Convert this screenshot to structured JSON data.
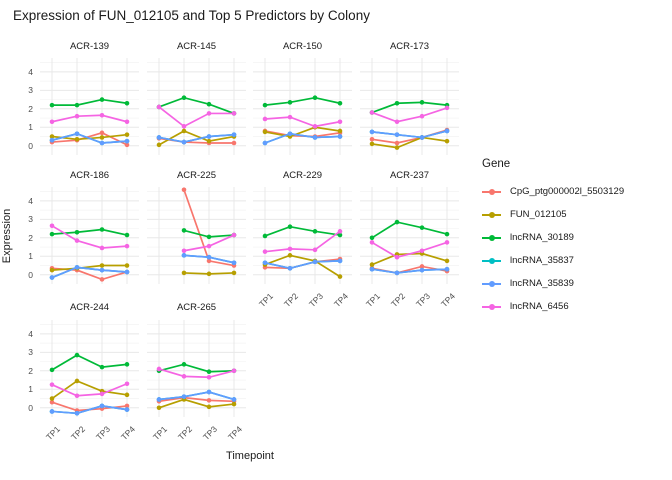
{
  "title": "Expression of FUN_012105 and Top 5 Predictors by Colony",
  "axes": {
    "x_label": "Timepoint",
    "y_label": "Expression",
    "x_tick_labels": [
      "TP1",
      "TP2",
      "TP3",
      "TP4"
    ],
    "y_tick_labels": [
      "0",
      "1",
      "2",
      "3",
      "4"
    ]
  },
  "legend": {
    "title": "Gene"
  },
  "chart_data": {
    "type": "line",
    "title": "Expression of FUN_012105 and Top 5 Predictors by Colony",
    "xlabel": "Timepoint",
    "ylabel": "Expression",
    "x": [
      "TP1",
      "TP2",
      "TP3",
      "TP4"
    ],
    "ylim": [
      -0.5,
      4.75
    ],
    "yticks": [
      0,
      1,
      2,
      3,
      4
    ],
    "grid": true,
    "legend_position": "right",
    "legend_title": "Gene",
    "genes": [
      {
        "name": "CpG_ptg000002l_5503129",
        "color": "#F8766D"
      },
      {
        "name": "FUN_012105",
        "color": "#B79F00"
      },
      {
        "name": "lncRNA_30189",
        "color": "#00BA38"
      },
      {
        "name": "lncRNA_35837",
        "color": "#00BFC4",
        "note": "hidden beneath lncRNA_35839 in all panels"
      },
      {
        "name": "lncRNA_35839",
        "color": "#619CFF"
      },
      {
        "name": "lncRNA_6456",
        "color": "#F564E3"
      }
    ],
    "facets": [
      {
        "name": "ACR-139",
        "series": [
          {
            "gene": "CpG_ptg000002l_5503129",
            "values": [
              0.2,
              0.3,
              0.7,
              0.05
            ]
          },
          {
            "gene": "FUN_012105",
            "values": [
              0.5,
              0.35,
              0.45,
              0.6
            ]
          },
          {
            "gene": "lncRNA_30189",
            "values": [
              2.2,
              2.2,
              2.5,
              2.3
            ]
          },
          {
            "gene": "lncRNA_35837",
            "values": [
              0.3,
              0.65,
              0.15,
              0.25
            ]
          },
          {
            "gene": "lncRNA_35839",
            "values": [
              0.3,
              0.65,
              0.15,
              0.25
            ]
          },
          {
            "gene": "lncRNA_6456",
            "values": [
              1.3,
              1.6,
              1.65,
              1.3
            ]
          }
        ]
      },
      {
        "name": "ACR-145",
        "series": [
          {
            "gene": "CpG_ptg000002l_5503129",
            "values": [
              0.4,
              0.2,
              0.15,
              0.15
            ]
          },
          {
            "gene": "FUN_012105",
            "values": [
              0.05,
              0.8,
              0.25,
              0.5
            ]
          },
          {
            "gene": "lncRNA_30189",
            "values": [
              2.1,
              2.6,
              2.25,
              1.75
            ]
          },
          {
            "gene": "lncRNA_35837",
            "values": [
              0.45,
              0.2,
              0.5,
              0.6
            ]
          },
          {
            "gene": "lncRNA_35839",
            "values": [
              0.45,
              0.2,
              0.5,
              0.6
            ]
          },
          {
            "gene": "lncRNA_6456",
            "values": [
              2.1,
              1.05,
              1.75,
              1.75
            ]
          }
        ]
      },
      {
        "name": "ACR-150",
        "series": [
          {
            "gene": "CpG_ptg000002l_5503129",
            "values": [
              0.8,
              0.55,
              0.5,
              0.7
            ]
          },
          {
            "gene": "FUN_012105",
            "values": [
              0.75,
              0.5,
              1.0,
              0.8
            ]
          },
          {
            "gene": "lncRNA_30189",
            "values": [
              2.2,
              2.35,
              2.6,
              2.3
            ]
          },
          {
            "gene": "lncRNA_35837",
            "values": [
              0.15,
              0.65,
              0.45,
              0.5
            ]
          },
          {
            "gene": "lncRNA_35839",
            "values": [
              0.15,
              0.65,
              0.45,
              0.5
            ]
          },
          {
            "gene": "lncRNA_6456",
            "values": [
              1.45,
              1.55,
              1.05,
              1.3
            ]
          }
        ]
      },
      {
        "name": "ACR-173",
        "series": [
          {
            "gene": "CpG_ptg000002l_5503129",
            "values": [
              0.35,
              0.15,
              0.45,
              0.85
            ]
          },
          {
            "gene": "FUN_012105",
            "values": [
              0.1,
              -0.1,
              0.45,
              0.25
            ]
          },
          {
            "gene": "lncRNA_30189",
            "values": [
              1.8,
              2.3,
              2.35,
              2.2
            ]
          },
          {
            "gene": "lncRNA_35837",
            "values": [
              0.75,
              0.6,
              0.45,
              0.8
            ]
          },
          {
            "gene": "lncRNA_35839",
            "values": [
              0.75,
              0.6,
              0.45,
              0.8
            ]
          },
          {
            "gene": "lncRNA_6456",
            "values": [
              1.8,
              1.3,
              1.6,
              2.05
            ]
          }
        ]
      },
      {
        "name": "ACR-186",
        "series": [
          {
            "gene": "CpG_ptg000002l_5503129",
            "values": [
              0.35,
              0.25,
              -0.25,
              0.15
            ]
          },
          {
            "gene": "FUN_012105",
            "values": [
              0.25,
              0.35,
              0.5,
              0.5
            ]
          },
          {
            "gene": "lncRNA_30189",
            "values": [
              2.2,
              2.3,
              2.45,
              2.15
            ]
          },
          {
            "gene": "lncRNA_35837",
            "values": [
              -0.15,
              0.4,
              0.25,
              0.15
            ]
          },
          {
            "gene": "lncRNA_35839",
            "values": [
              -0.15,
              0.4,
              0.25,
              0.15
            ]
          },
          {
            "gene": "lncRNA_6456",
            "values": [
              2.65,
              1.85,
              1.45,
              1.55
            ]
          }
        ]
      },
      {
        "name": "ACR-225",
        "series": [
          {
            "gene": "CpG_ptg000002l_5503129",
            "values": [
              null,
              4.6,
              0.75,
              0.5
            ]
          },
          {
            "gene": "FUN_012105",
            "values": [
              null,
              0.1,
              0.05,
              0.1
            ]
          },
          {
            "gene": "lncRNA_30189",
            "values": [
              null,
              2.4,
              2.05,
              2.15
            ]
          },
          {
            "gene": "lncRNA_35837",
            "values": [
              null,
              1.05,
              0.95,
              0.65
            ]
          },
          {
            "gene": "lncRNA_35839",
            "values": [
              null,
              1.05,
              0.95,
              0.65
            ]
          },
          {
            "gene": "lncRNA_6456",
            "values": [
              null,
              1.3,
              1.55,
              2.15
            ]
          }
        ]
      },
      {
        "name": "ACR-229",
        "series": [
          {
            "gene": "CpG_ptg000002l_5503129",
            "values": [
              0.4,
              0.35,
              0.7,
              0.85
            ]
          },
          {
            "gene": "FUN_012105",
            "values": [
              0.55,
              1.05,
              0.75,
              -0.1
            ]
          },
          {
            "gene": "lncRNA_30189",
            "values": [
              2.1,
              2.6,
              2.35,
              2.15
            ]
          },
          {
            "gene": "lncRNA_35837",
            "values": [
              0.65,
              0.35,
              0.7,
              0.75
            ]
          },
          {
            "gene": "lncRNA_35839",
            "values": [
              0.65,
              0.35,
              0.7,
              0.75
            ]
          },
          {
            "gene": "lncRNA_6456",
            "values": [
              1.25,
              1.4,
              1.35,
              2.35
            ]
          }
        ]
      },
      {
        "name": "ACR-237",
        "series": [
          {
            "gene": "CpG_ptg000002l_5503129",
            "values": [
              0.35,
              0.1,
              0.45,
              0.2
            ]
          },
          {
            "gene": "FUN_012105",
            "values": [
              0.55,
              1.1,
              1.15,
              0.75
            ]
          },
          {
            "gene": "lncRNA_30189",
            "values": [
              2.0,
              2.85,
              2.55,
              2.2
            ]
          },
          {
            "gene": "lncRNA_35837",
            "values": [
              0.3,
              0.1,
              0.25,
              0.3
            ]
          },
          {
            "gene": "lncRNA_35839",
            "values": [
              0.3,
              0.1,
              0.25,
              0.3
            ]
          },
          {
            "gene": "lncRNA_6456",
            "values": [
              1.75,
              0.95,
              1.3,
              1.75
            ]
          }
        ]
      },
      {
        "name": "ACR-244",
        "series": [
          {
            "gene": "CpG_ptg000002l_5503129",
            "values": [
              0.3,
              -0.15,
              -0.05,
              0.1
            ]
          },
          {
            "gene": "FUN_012105",
            "values": [
              0.5,
              1.45,
              0.9,
              0.7
            ]
          },
          {
            "gene": "lncRNA_30189",
            "values": [
              2.05,
              2.85,
              2.2,
              2.35
            ]
          },
          {
            "gene": "lncRNA_35837",
            "values": [
              -0.2,
              -0.3,
              0.1,
              -0.1
            ]
          },
          {
            "gene": "lncRNA_35839",
            "values": [
              -0.2,
              -0.3,
              0.1,
              -0.1
            ]
          },
          {
            "gene": "lncRNA_6456",
            "values": [
              1.25,
              0.65,
              0.75,
              1.3
            ]
          }
        ]
      },
      {
        "name": "ACR-265",
        "series": [
          {
            "gene": "CpG_ptg000002l_5503129",
            "values": [
              0.35,
              0.55,
              0.4,
              0.35
            ]
          },
          {
            "gene": "FUN_012105",
            "values": [
              0.0,
              0.45,
              0.05,
              0.2
            ]
          },
          {
            "gene": "lncRNA_30189",
            "values": [
              2.0,
              2.35,
              1.95,
              2.0
            ]
          },
          {
            "gene": "lncRNA_35837",
            "values": [
              0.45,
              0.6,
              0.85,
              0.45
            ]
          },
          {
            "gene": "lncRNA_35839",
            "values": [
              0.45,
              0.6,
              0.85,
              0.45
            ]
          },
          {
            "gene": "lncRNA_6456",
            "values": [
              2.1,
              1.7,
              1.65,
              2.0
            ]
          }
        ]
      }
    ]
  }
}
